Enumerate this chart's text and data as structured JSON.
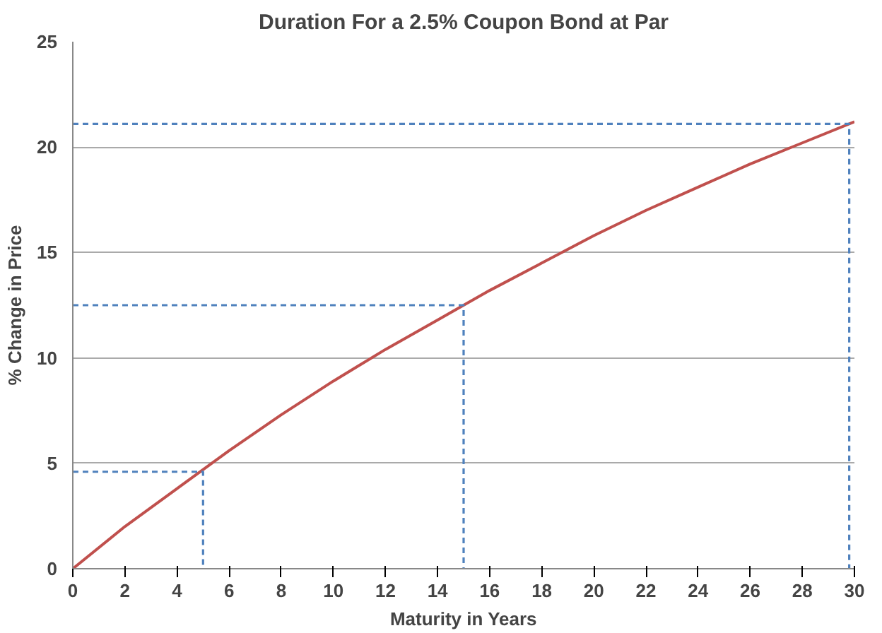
{
  "chart_data": {
    "type": "line",
    "title": "Duration For a 2.5% Coupon Bond at Par",
    "xlabel": "Maturity in Years",
    "ylabel": "% Change in Price",
    "x": [
      0,
      2,
      4,
      6,
      8,
      10,
      12,
      14,
      16,
      18,
      20,
      22,
      24,
      26,
      28,
      30
    ],
    "series": [
      {
        "color": "#c0504d",
        "line_style": "solid",
        "values": [
          0,
          2.0,
          3.8,
          5.6,
          7.3,
          8.9,
          10.4,
          11.8,
          13.2,
          14.5,
          15.8,
          17.0,
          18.1,
          19.2,
          20.2,
          21.2
        ]
      },
      {
        "color": "#4f81bd",
        "line_style": "dashed",
        "x": [
          0,
          5,
          5
        ],
        "values": [
          4.6,
          4.6,
          0
        ]
      },
      {
        "color": "#4f81bd",
        "line_style": "dashed",
        "x": [
          0,
          15,
          15
        ],
        "values": [
          12.5,
          12.5,
          0
        ]
      },
      {
        "color": "#4f81bd",
        "line_style": "dashed",
        "x": [
          0,
          29.8,
          29.8
        ],
        "values": [
          21.1,
          21.1,
          0
        ]
      }
    ],
    "xlim": [
      0,
      30
    ],
    "ylim": [
      0,
      25
    ],
    "xticks": [
      0,
      2,
      4,
      6,
      8,
      10,
      12,
      14,
      16,
      18,
      20,
      22,
      24,
      26,
      28,
      30
    ],
    "yticks": [
      0,
      5,
      10,
      15,
      20,
      25
    ],
    "grid": "y",
    "marker": "none"
  }
}
